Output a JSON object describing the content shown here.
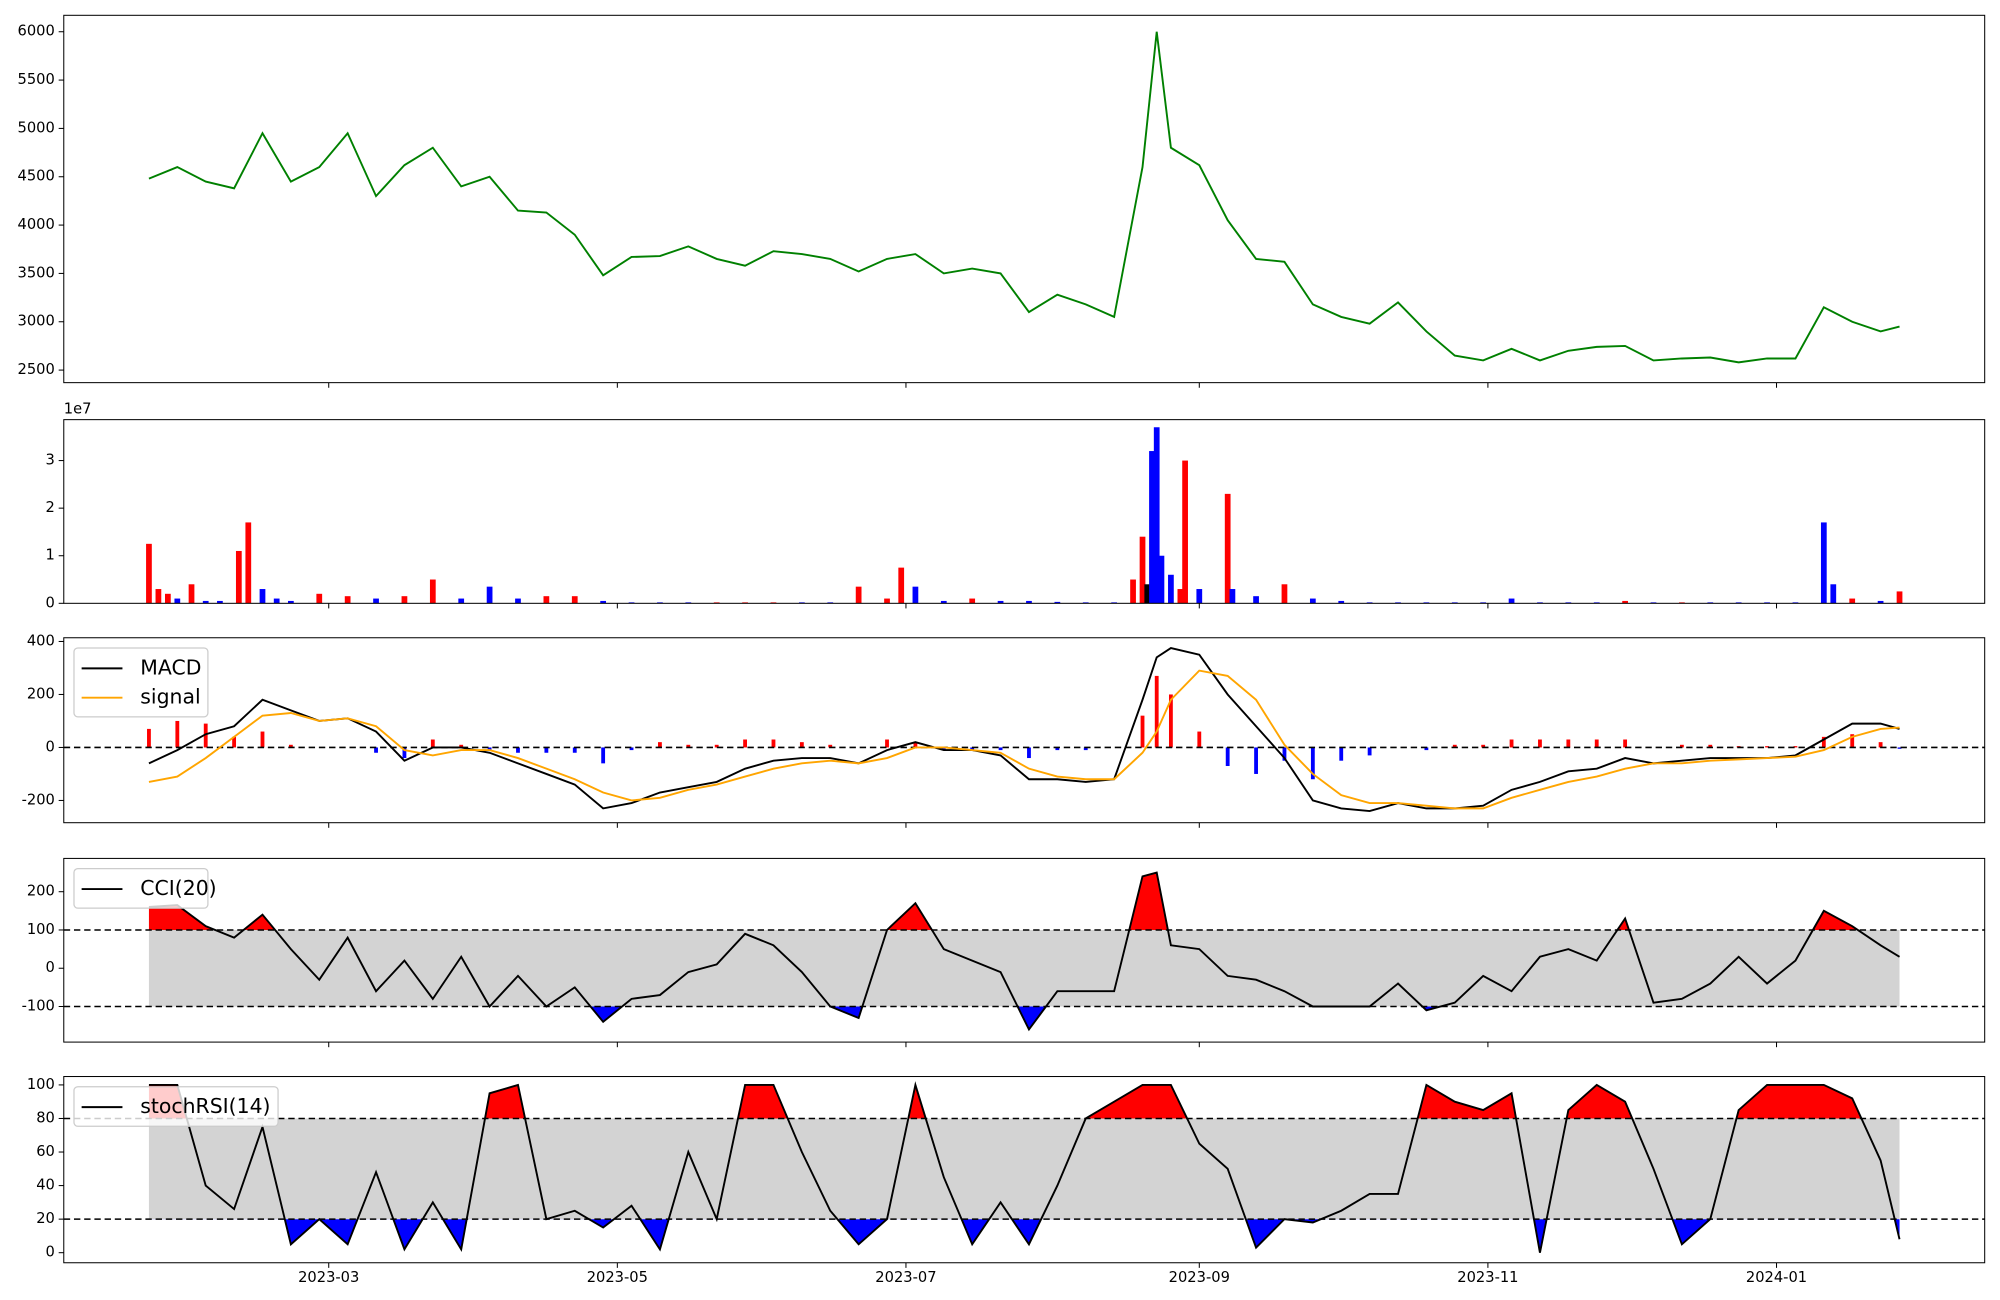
{
  "chart_data": [
    {
      "type": "line",
      "color": "green",
      "x": [
        21,
        27,
        33,
        39,
        45,
        51,
        57,
        63,
        69,
        75,
        81,
        87,
        93,
        99,
        105,
        111,
        117,
        123,
        129,
        135,
        141,
        147,
        153,
        159,
        165,
        171,
        177,
        183,
        189,
        195,
        201,
        207,
        213,
        219,
        225,
        231,
        234,
        237,
        243,
        249,
        255,
        261,
        267,
        273,
        279,
        285,
        291,
        297,
        303,
        309,
        315,
        321,
        327,
        333,
        339,
        345,
        351,
        357,
        363,
        369,
        375,
        381,
        387,
        391
      ],
      "values": [
        4480,
        4600,
        4450,
        4380,
        4950,
        4450,
        4600,
        4950,
        4300,
        4620,
        4800,
        4400,
        4500,
        4150,
        4130,
        3900,
        3480,
        3670,
        3680,
        3780,
        3650,
        3580,
        3730,
        3700,
        3650,
        3520,
        3650,
        3700,
        3500,
        3550,
        3500,
        3100,
        3280,
        3180,
        3050,
        4600,
        6000,
        4800,
        4620,
        4050,
        3650,
        3620,
        3180,
        3050,
        2980,
        3200,
        2900,
        2650,
        2600,
        2720,
        2600,
        2700,
        2740,
        2750,
        2600,
        2620,
        2630,
        2580,
        2620,
        2620,
        3150,
        3000,
        2900,
        2950
      ],
      "xlim": [
        3,
        409
      ],
      "xticks": [
        59,
        120,
        181,
        243,
        304,
        365
      ],
      "ylim": [
        2370,
        6170
      ],
      "yticks": [
        2500,
        3000,
        3500,
        4000,
        4500,
        5000,
        5500,
        6000
      ]
    },
    {
      "type": "bar",
      "y_offset_label": "1e7",
      "x": [
        21,
        23,
        25,
        27,
        30,
        33,
        36,
        40,
        42,
        45,
        48,
        51,
        57,
        63,
        69,
        75,
        81,
        87,
        93,
        99,
        105,
        111,
        117,
        123,
        129,
        135,
        141,
        147,
        153,
        159,
        165,
        171,
        177,
        180,
        183,
        189,
        195,
        201,
        207,
        213,
        219,
        225,
        229,
        231,
        232,
        233,
        234,
        235,
        237,
        239,
        240,
        243,
        249,
        250,
        255,
        261,
        267,
        273,
        279,
        285,
        291,
        297,
        303,
        309,
        315,
        321,
        327,
        333,
        339,
        345,
        351,
        357,
        363,
        369,
        375,
        377,
        381,
        387,
        391
      ],
      "values": [
        1.25,
        0.3,
        0.2,
        0.1,
        0.4,
        0.05,
        0.05,
        1.1,
        1.7,
        0.3,
        0.1,
        0.05,
        0.2,
        0.15,
        0.1,
        0.15,
        0.5,
        0.1,
        0.35,
        0.1,
        0.15,
        0.15,
        0.05,
        0.02,
        0.02,
        0.02,
        0.02,
        0.02,
        0.02,
        0.02,
        0.02,
        0.35,
        0.1,
        0.75,
        0.35,
        0.05,
        0.1,
        0.05,
        0.05,
        0.03,
        0.02,
        0.02,
        0.5,
        1.4,
        0.4,
        3.2,
        3.7,
        1.0,
        0.6,
        0.3,
        3.0,
        0.3,
        2.3,
        0.3,
        0.15,
        0.4,
        0.1,
        0.05,
        0.02,
        0.02,
        0.02,
        0.02,
        0.02,
        0.1,
        0.02,
        0.02,
        0.02,
        0.05,
        0.02,
        0.02,
        0.02,
        0.02,
        0.02,
        0.02,
        1.7,
        0.4,
        0.1,
        0.05,
        0.25
      ],
      "colors": [
        "red",
        "red",
        "red",
        "blue",
        "red",
        "blue",
        "blue",
        "red",
        "red",
        "blue",
        "blue",
        "blue",
        "red",
        "red",
        "blue",
        "red",
        "red",
        "blue",
        "blue",
        "blue",
        "red",
        "red",
        "blue",
        "blue",
        "blue",
        "blue",
        "red",
        "red",
        "red",
        "blue",
        "blue",
        "red",
        "red",
        "red",
        "blue",
        "blue",
        "red",
        "blue",
        "blue",
        "blue",
        "blue",
        "blue",
        "red",
        "red",
        "black",
        "blue",
        "blue",
        "blue",
        "blue",
        "red",
        "red",
        "blue",
        "red",
        "blue",
        "blue",
        "red",
        "blue",
        "blue",
        "blue",
        "blue",
        "blue",
        "blue",
        "blue",
        "blue",
        "blue",
        "blue",
        "blue",
        "red",
        "blue",
        "red",
        "blue",
        "blue",
        "blue",
        "blue",
        "blue",
        "blue",
        "red",
        "blue",
        "red"
      ],
      "xlim": [
        3,
        409
      ],
      "xticks": [
        59,
        120,
        181,
        243,
        304,
        365
      ],
      "ylim": [
        0,
        3.86
      ],
      "yticks": [
        0,
        1,
        2,
        3
      ]
    },
    {
      "type": "line",
      "legend": "upper left",
      "hlines": [
        0
      ],
      "x": [
        21,
        27,
        33,
        39,
        45,
        51,
        57,
        63,
        69,
        75,
        81,
        87,
        93,
        99,
        105,
        111,
        117,
        123,
        129,
        135,
        141,
        147,
        153,
        159,
        165,
        171,
        177,
        183,
        189,
        195,
        201,
        207,
        213,
        219,
        225,
        231,
        234,
        237,
        243,
        249,
        255,
        261,
        267,
        273,
        279,
        285,
        291,
        297,
        303,
        309,
        315,
        321,
        327,
        333,
        339,
        345,
        351,
        357,
        363,
        369,
        375,
        381,
        387,
        391
      ],
      "series": [
        {
          "type": "bar",
          "pos_color": "red",
          "neg_color": "blue",
          "values": [
            70,
            100,
            90,
            40,
            60,
            10,
            0,
            0,
            -20,
            -40,
            30,
            10,
            -10,
            -20,
            -20,
            -20,
            -60,
            -10,
            20,
            10,
            10,
            30,
            30,
            20,
            10,
            0,
            30,
            20,
            -10,
            -10,
            -10,
            -40,
            -10,
            -10,
            0,
            120,
            270,
            200,
            60,
            -70,
            -100,
            -50,
            -120,
            -50,
            -30,
            0,
            -10,
            10,
            10,
            30,
            30,
            30,
            30,
            30,
            0,
            10,
            10,
            5,
            5,
            5,
            40,
            50,
            20,
            -5
          ]
        },
        {
          "name": "MACD",
          "color": "black",
          "values": [
            -60,
            -10,
            50,
            80,
            180,
            140,
            100,
            110,
            60,
            -50,
            0,
            0,
            -20,
            -60,
            -100,
            -140,
            -230,
            -210,
            -170,
            -150,
            -130,
            -80,
            -50,
            -40,
            -40,
            -60,
            -10,
            20,
            -10,
            -10,
            -30,
            -120,
            -120,
            -130,
            -120,
            180,
            340,
            375,
            350,
            200,
            80,
            -40,
            -200,
            -230,
            -240,
            -210,
            -230,
            -230,
            -220,
            -160,
            -130,
            -90,
            -80,
            -40,
            -60,
            -50,
            -40,
            -40,
            -40,
            -30,
            30,
            90,
            90,
            70
          ]
        },
        {
          "name": "signal",
          "color": "orange",
          "values": [
            -130,
            -110,
            -40,
            40,
            120,
            130,
            100,
            110,
            80,
            -10,
            -30,
            -10,
            -10,
            -40,
            -80,
            -120,
            -170,
            -200,
            -190,
            -160,
            -140,
            -110,
            -80,
            -60,
            -50,
            -60,
            -40,
            0,
            0,
            -10,
            -20,
            -80,
            -110,
            -120,
            -120,
            -20,
            60,
            180,
            290,
            270,
            180,
            10,
            -100,
            -180,
            -210,
            -210,
            -220,
            -230,
            -230,
            -190,
            -160,
            -130,
            -110,
            -80,
            -60,
            -60,
            -50,
            -45,
            -40,
            -35,
            -10,
            40,
            70,
            75
          ]
        }
      ],
      "xlim": [
        3,
        409
      ],
      "xticks": [
        59,
        120,
        181,
        243,
        304,
        365
      ],
      "ylim": [
        -284,
        414
      ],
      "yticks": [
        -200,
        0,
        200,
        400
      ]
    },
    {
      "type": "band",
      "legend": "upper left",
      "band": {
        "lower": -100,
        "upper": 100,
        "color": "lightgray",
        "upper_color": "red",
        "lower_color": "blue"
      },
      "x": [
        21,
        27,
        33,
        39,
        45,
        51,
        57,
        63,
        69,
        75,
        81,
        87,
        93,
        99,
        105,
        111,
        117,
        123,
        129,
        135,
        141,
        147,
        153,
        159,
        165,
        171,
        177,
        183,
        189,
        195,
        201,
        207,
        213,
        219,
        225,
        231,
        234,
        237,
        243,
        249,
        255,
        261,
        267,
        273,
        279,
        285,
        291,
        297,
        303,
        309,
        315,
        321,
        327,
        333,
        339,
        345,
        351,
        357,
        363,
        369,
        375,
        381,
        387,
        391
      ],
      "series": [
        {
          "name": "CCI(20)",
          "color": "black",
          "values": [
            160,
            165,
            110,
            80,
            140,
            50,
            -30,
            80,
            -60,
            20,
            -80,
            30,
            -100,
            -20,
            -100,
            -50,
            -140,
            -80,
            -70,
            -10,
            10,
            90,
            60,
            -10,
            -100,
            -130,
            100,
            170,
            50,
            20,
            -10,
            -160,
            -60,
            -60,
            -60,
            240,
            250,
            60,
            50,
            -20,
            -30,
            -60,
            -100,
            -100,
            -100,
            -40,
            -110,
            -90,
            -20,
            -60,
            30,
            50,
            20,
            130,
            -90,
            -80,
            -40,
            30,
            -40,
            20,
            150,
            110,
            60,
            30
          ]
        }
      ],
      "xlim": [
        3,
        409
      ],
      "xticks": [
        59,
        120,
        181,
        243,
        304,
        365
      ],
      "ylim": [
        -193,
        287
      ],
      "yticks": [
        -100,
        0,
        100,
        200
      ]
    },
    {
      "type": "band",
      "legend": "upper left",
      "band": {
        "lower": 20,
        "upper": 80,
        "color": "lightgray",
        "upper_color": "red",
        "lower_color": "blue"
      },
      "x": [
        21,
        27,
        33,
        39,
        45,
        51,
        57,
        63,
        69,
        75,
        81,
        87,
        93,
        99,
        105,
        111,
        117,
        123,
        129,
        135,
        141,
        147,
        153,
        159,
        165,
        171,
        177,
        183,
        189,
        195,
        201,
        207,
        213,
        219,
        225,
        231,
        234,
        237,
        243,
        249,
        255,
        261,
        267,
        273,
        279,
        285,
        291,
        297,
        303,
        309,
        315,
        321,
        327,
        333,
        339,
        345,
        351,
        357,
        363,
        369,
        375,
        381,
        387,
        391
      ],
      "series": [
        {
          "name": "stochRSI(14)",
          "color": "black",
          "values": [
            100,
            100,
            40,
            26,
            75,
            5,
            20,
            5,
            48,
            2,
            30,
            2,
            95,
            100,
            20,
            25,
            15,
            28,
            2,
            60,
            20,
            100,
            100,
            60,
            25,
            5,
            20,
            100,
            45,
            5,
            30,
            5,
            40,
            80,
            90,
            100,
            100,
            100,
            65,
            50,
            3,
            20,
            18,
            25,
            35,
            35,
            100,
            90,
            85,
            95,
            0,
            85,
            100,
            90,
            50,
            5,
            20,
            85,
            100,
            100,
            100,
            92,
            55,
            8
          ]
        }
      ],
      "xlim": [
        3,
        409
      ],
      "xticks": [
        {
          "value": 59,
          "label": "2023-03"
        },
        {
          "value": 120,
          "label": "2023-05"
        },
        {
          "value": 181,
          "label": "2023-07"
        },
        {
          "value": 243,
          "label": "2023-09"
        },
        {
          "value": 304,
          "label": "2023-11"
        },
        {
          "value": 365,
          "label": "2024-01"
        }
      ],
      "ylim": [
        -6,
        105
      ],
      "yticks": [
        0,
        20,
        40,
        60,
        80,
        100
      ]
    }
  ]
}
